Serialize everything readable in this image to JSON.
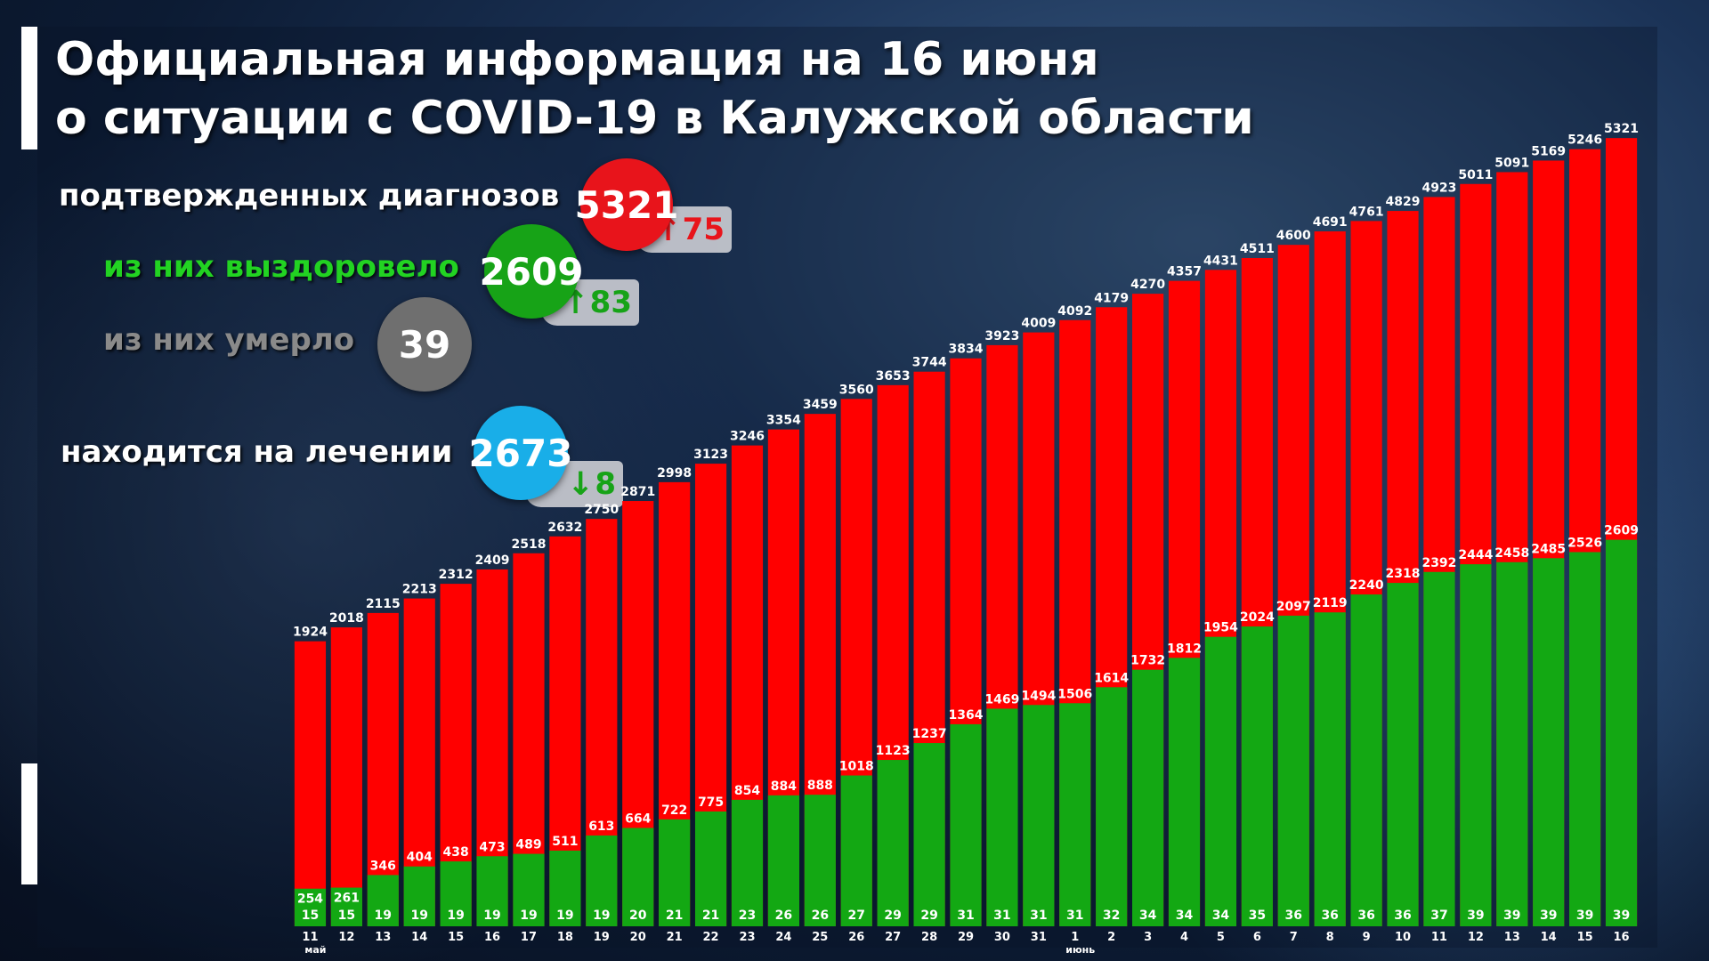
{
  "title": {
    "line1": "Официальная информация на 16 июня",
    "line2": "о ситуации с COVID-19 в Калужской области"
  },
  "stats": {
    "confirmed": {
      "label": "подтвержденных диагнозов",
      "value": "5321",
      "delta": "75",
      "delta_dir": "up",
      "color": "#e8141b"
    },
    "recovered": {
      "label": "из них выздоровело",
      "value": "2609",
      "delta": "83",
      "delta_dir": "up",
      "color": "#17a317"
    },
    "died": {
      "label": "из них умерло",
      "value": "39",
      "color": "#6f6f6f"
    },
    "treatment": {
      "label": "находится на лечении",
      "value": "2673",
      "delta": "8",
      "delta_dir": "down",
      "color": "#19aee8"
    }
  },
  "chart_data": {
    "type": "bar",
    "stacked": "overlay",
    "categories": [
      "11",
      "12",
      "13",
      "14",
      "15",
      "16",
      "17",
      "18",
      "19",
      "20",
      "21",
      "22",
      "23",
      "24",
      "25",
      "26",
      "27",
      "28",
      "29",
      "30",
      "31",
      "1",
      "2",
      "3",
      "4",
      "5",
      "6",
      "7",
      "8",
      "9",
      "10",
      "11",
      "12",
      "13",
      "14",
      "15",
      "16"
    ],
    "month_labels": [
      {
        "index": 0,
        "text": "май"
      },
      {
        "index": 21,
        "text": "июнь"
      }
    ],
    "series": [
      {
        "role": "confirmed",
        "color": "#ff0000",
        "values": [
          1924,
          2018,
          2115,
          2213,
          2312,
          2409,
          2518,
          2632,
          2750,
          2871,
          2998,
          3123,
          3246,
          3354,
          3459,
          3560,
          3653,
          3744,
          3834,
          3923,
          4009,
          4092,
          4179,
          4270,
          4357,
          4431,
          4511,
          4600,
          4691,
          4761,
          4829,
          4923,
          5011,
          5091,
          5169,
          5246,
          5321
        ]
      },
      {
        "role": "recovered",
        "color": "#13a813",
        "values": [
          254,
          261,
          346,
          404,
          438,
          473,
          489,
          511,
          613,
          664,
          722,
          775,
          854,
          884,
          888,
          1018,
          1123,
          1237,
          1364,
          1469,
          1494,
          1506,
          1614,
          1732,
          1812,
          1954,
          2024,
          2097,
          2119,
          2240,
          2318,
          2392,
          2444,
          2458,
          2485,
          2526,
          2609
        ]
      },
      {
        "role": "died",
        "color": "#13a813",
        "values": [
          15,
          15,
          19,
          19,
          19,
          19,
          19,
          19,
          19,
          20,
          21,
          21,
          23,
          26,
          26,
          27,
          29,
          29,
          31,
          31,
          31,
          31,
          32,
          34,
          34,
          34,
          35,
          36,
          36,
          36,
          36,
          37,
          39,
          39,
          39,
          39,
          39
        ]
      }
    ],
    "ylim": [
      0,
      5400
    ],
    "grid": false,
    "legend": "none"
  }
}
